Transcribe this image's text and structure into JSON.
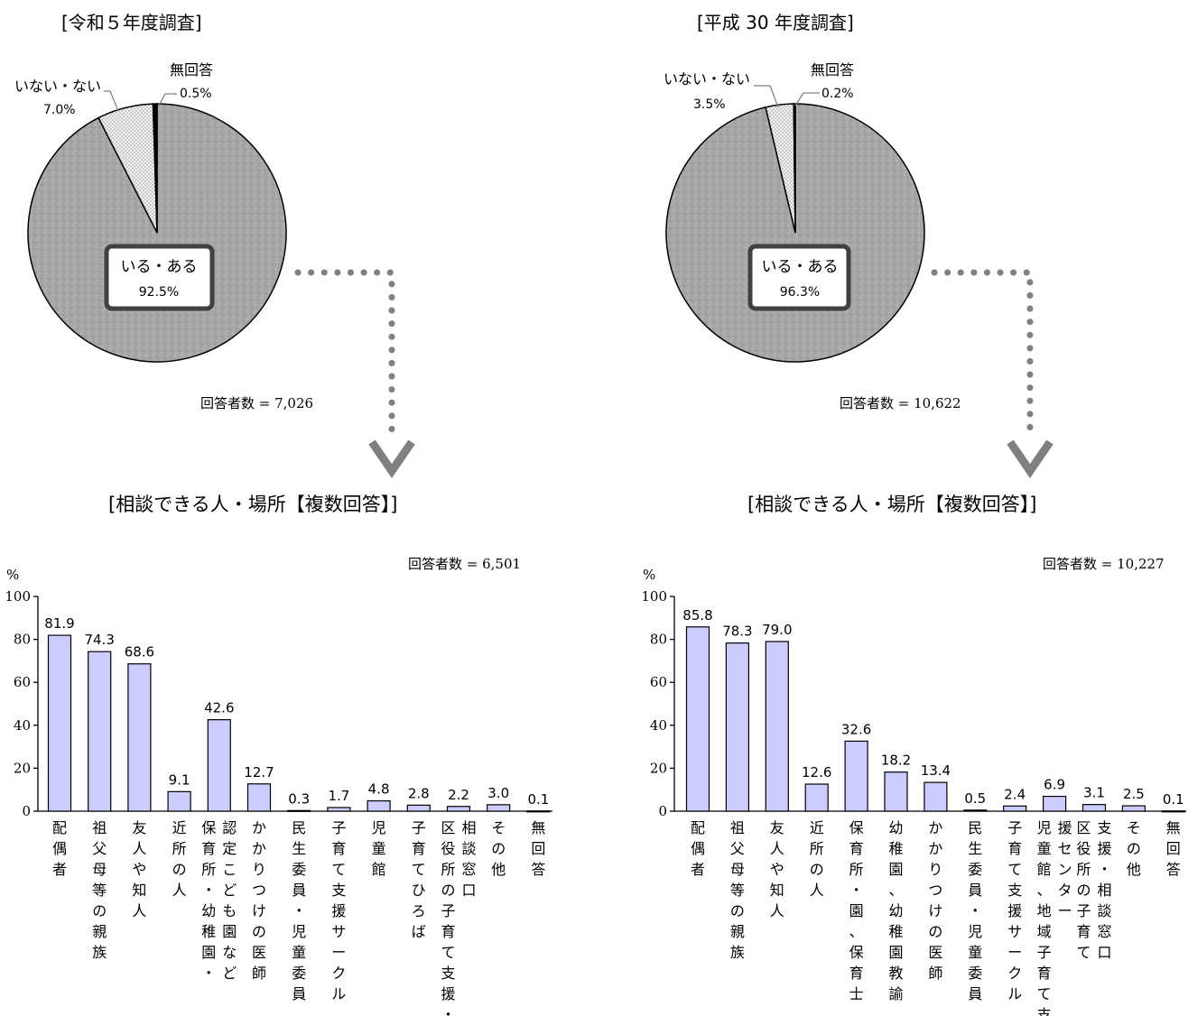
{
  "colors": {
    "pie_main": "#a6a6a6",
    "pie_secondary": "#ececec",
    "pie_no_answer": "#000000",
    "bar_fill": "#ccccff",
    "bar_stroke": "#000000",
    "arrow": "#808080",
    "label_box_border": "#404040"
  },
  "chart_data": [
    {
      "type": "pie",
      "title": "[令和５年度調査]",
      "respondents_note": "回答者数 = 7,026",
      "slices": [
        {
          "name": "いる・ある",
          "value": 92.5,
          "label": "92.5%"
        },
        {
          "name": "いない・ない",
          "value": 7.0,
          "label": "7.0%"
        },
        {
          "name": "無回答",
          "value": 0.5,
          "label": "0.5%"
        }
      ]
    },
    {
      "type": "pie",
      "title": "[平成 30 年度調査]",
      "respondents_note": "回答者数 = 10,622",
      "slices": [
        {
          "name": "いる・ある",
          "value": 96.3,
          "label": "96.3%"
        },
        {
          "name": "いない・ない",
          "value": 3.5,
          "label": "3.5%"
        },
        {
          "name": "無回答",
          "value": 0.2,
          "label": "0.2%"
        }
      ]
    },
    {
      "type": "bar",
      "title": "[相談できる人・場所【複数回答】]",
      "respondents_note": "回答者数 = 6,501",
      "ylabel": "%",
      "ylim": [
        0,
        100
      ],
      "yticks": [
        "0",
        "20",
        "40",
        "60",
        "80",
        "100"
      ],
      "categories": [
        "配偶者",
        "祖父母等の親族",
        "友人や知人",
        "近所の人",
        "認定こども園など保育所・幼稚園・",
        "かかりつけの医師",
        "民生委員・児童委員",
        "子育て支援サークル",
        "児童館",
        "子育てひろば",
        "相談窓口区役所の子育て支援・",
        "その他",
        "無回答"
      ],
      "category_lines": [
        [
          "配偶者"
        ],
        [
          "祖父母等の親族"
        ],
        [
          "友人や知人"
        ],
        [
          "近所の人"
        ],
        [
          "認定こども園など",
          "保育所・幼稚園・"
        ],
        [
          "かかりつけの医師"
        ],
        [
          "民生委員・児童委員"
        ],
        [
          "子育て支援サークル"
        ],
        [
          "児童館"
        ],
        [
          "子育てひろば"
        ],
        [
          "相談窓口",
          "区役所の子育て支援・"
        ],
        [
          "その他"
        ],
        [
          "無回答"
        ]
      ],
      "values": [
        81.9,
        74.3,
        68.6,
        9.1,
        42.6,
        12.7,
        0.3,
        1.7,
        4.8,
        2.8,
        2.2,
        3.0,
        0.1
      ],
      "value_labels": [
        "81.9",
        "74.3",
        "68.6",
        "9.1",
        "42.6",
        "12.7",
        "0.3",
        "1.7",
        "4.8",
        "2.8",
        "2.2",
        "3.0",
        "0.1"
      ]
    },
    {
      "type": "bar",
      "title": "[相談できる人・場所【複数回答】]",
      "respondents_note": "回答者数 = 10,227",
      "ylabel": "%",
      "ylim": [
        0,
        100
      ],
      "yticks": [
        "0",
        "20",
        "40",
        "60",
        "80",
        "100"
      ],
      "categories": [
        "配偶者",
        "祖父母等の親族",
        "友人や知人",
        "近所の人",
        "保育所・園、保育士",
        "幼稚園、幼稚園教諭",
        "かかりつけの医師",
        "民生委員・児童委員",
        "子育て支援サークル",
        "援センター児童館、地域子育て支",
        "支援・相談窓口区役所の子育て",
        "その他",
        "無回答"
      ],
      "category_lines": [
        [
          "配偶者"
        ],
        [
          "祖父母等の親族"
        ],
        [
          "友人や知人"
        ],
        [
          "近所の人"
        ],
        [
          "保育所・園、保育士"
        ],
        [
          "幼稚園、幼稚園教諭"
        ],
        [
          "かかりつけの医師"
        ],
        [
          "民生委員・児童委員"
        ],
        [
          "子育て支援サークル"
        ],
        [
          "援センター",
          "児童館、地域子育て支"
        ],
        [
          "支援・相談窓口",
          "区役所の子育て"
        ],
        [
          "その他"
        ],
        [
          "無回答"
        ]
      ],
      "values": [
        85.8,
        78.3,
        79.0,
        12.6,
        32.6,
        18.2,
        13.4,
        0.5,
        2.4,
        6.9,
        3.1,
        2.5,
        0.1
      ],
      "value_labels": [
        "85.8",
        "78.3",
        "79.0",
        "12.6",
        "32.6",
        "18.2",
        "13.4",
        "0.5",
        "2.4",
        "6.9",
        "3.1",
        "2.5",
        "0.1"
      ]
    }
  ]
}
